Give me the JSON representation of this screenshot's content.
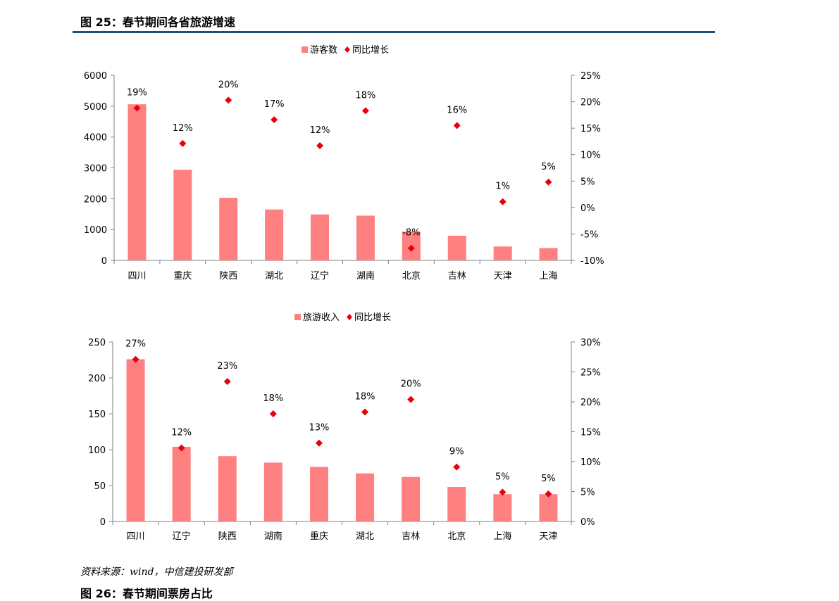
{
  "figure": {
    "title": "图 25：春节期间各省旅游增速",
    "source": "资料来源：wind，中信建投研发部",
    "next_title": "图 26：春节期间票房占比"
  },
  "colors": {
    "bar": "#ff8080",
    "marker": "#e8000b",
    "rule": "#1f4e79",
    "axis": "#808080"
  },
  "chart_data": [
    {
      "type": "bar",
      "categories": [
        "四川",
        "重庆",
        "陕西",
        "湖北",
        "辽宁",
        "湖南",
        "北京",
        "吉林",
        "天津",
        "上海"
      ],
      "series": [
        {
          "name": "游客数",
          "type": "bar",
          "axis": "left",
          "values": [
            5060,
            2940,
            2030,
            1650,
            1490,
            1450,
            930,
            800,
            450,
            400
          ]
        },
        {
          "name": "同比增长",
          "type": "scatter",
          "axis": "right",
          "values": [
            18.8,
            12.1,
            20.3,
            16.6,
            11.7,
            18.3,
            -7.7,
            15.5,
            1.1,
            4.8
          ],
          "labels": [
            "19%",
            "12%",
            "20%",
            "17%",
            "12%",
            "18%",
            "-8%",
            "16%",
            "1%",
            "5%"
          ]
        }
      ],
      "y_left": {
        "min": 0,
        "max": 6000,
        "ticks": [
          "0",
          "1000",
          "2000",
          "3000",
          "4000",
          "5000",
          "6000"
        ]
      },
      "y_right": {
        "min": -10,
        "max": 25,
        "ticks": [
          "-10%",
          "-5%",
          "0%",
          "5%",
          "10%",
          "15%",
          "20%",
          "25%"
        ]
      },
      "legend": "top-center",
      "grid": false
    },
    {
      "type": "bar",
      "categories": [
        "四川",
        "辽宁",
        "陕西",
        "湖南",
        "重庆",
        "湖北",
        "吉林",
        "北京",
        "上海",
        "天津"
      ],
      "series": [
        {
          "name": "旅游收入",
          "type": "bar",
          "axis": "left",
          "values": [
            226,
            104,
            91,
            82,
            76,
            67,
            62,
            48,
            38,
            38
          ]
        },
        {
          "name": "同比增长",
          "type": "scatter",
          "axis": "right",
          "values": [
            27.1,
            12.3,
            23.4,
            18.0,
            13.1,
            18.3,
            20.4,
            9.1,
            4.9,
            4.6
          ],
          "labels": [
            "27%",
            "12%",
            "23%",
            "18%",
            "13%",
            "18%",
            "20%",
            "9%",
            "5%",
            "5%"
          ]
        }
      ],
      "y_left": {
        "min": 0,
        "max": 250,
        "ticks": [
          "0",
          "50",
          "100",
          "150",
          "200",
          "250"
        ]
      },
      "y_right": {
        "min": 0,
        "max": 30,
        "ticks": [
          "0%",
          "5%",
          "10%",
          "15%",
          "20%",
          "25%",
          "30%"
        ]
      },
      "legend": "top-center",
      "grid": false
    }
  ]
}
